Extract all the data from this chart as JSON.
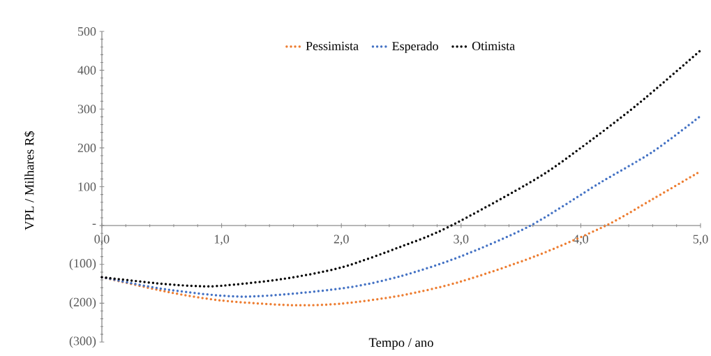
{
  "chart_data": {
    "type": "line",
    "xlabel": "Tempo / ano",
    "ylabel": "VPL / Milhares R$",
    "xlim": [
      0,
      5
    ],
    "ylim": [
      -300,
      500
    ],
    "xticks": [
      {
        "value": 0,
        "label": "0,0"
      },
      {
        "value": 1,
        "label": "1,0"
      },
      {
        "value": 2,
        "label": "2,0"
      },
      {
        "value": 3,
        "label": "3,0"
      },
      {
        "value": 4,
        "label": "4,0"
      },
      {
        "value": 5,
        "label": "5,0"
      }
    ],
    "yticks": [
      {
        "value": -300,
        "label": "(300)"
      },
      {
        "value": -200,
        "label": "(200)"
      },
      {
        "value": -100,
        "label": "(100)"
      },
      {
        "value": 0,
        "label": "-"
      },
      100,
      200,
      300,
      400,
      500
    ],
    "legend": "top",
    "marker": "none",
    "line_style": "dotted",
    "series": [
      {
        "name": "Pessimista",
        "color": "#ed7d31",
        "x": [
          0,
          0.55,
          1.0,
          1.58,
          2.0,
          2.5,
          3.0,
          3.62,
          4.21,
          4.6,
          5.0
        ],
        "values": [
          -133,
          -171,
          -193,
          -205,
          -201,
          -180,
          -144,
          -79,
          0,
          68,
          140
        ]
      },
      {
        "name": "Esperado",
        "color": "#4472c4",
        "x": [
          0,
          0.55,
          1.2,
          2.0,
          2.5,
          3.0,
          3.58,
          4.16,
          4.6,
          5.0
        ],
        "values": [
          -133,
          -165,
          -183,
          -162,
          -130,
          -79,
          0,
          110,
          190,
          282
        ]
      },
      {
        "name": "Otimista",
        "color": "#000000",
        "x": [
          0,
          0.5,
          0.8,
          1.0,
          1.5,
          2.0,
          2.5,
          2.9,
          3.62,
          4.0,
          4.47,
          5.0
        ],
        "values": [
          -133,
          -150,
          -156,
          -155,
          -138,
          -108,
          -54,
          -3,
          119,
          200,
          311,
          451
        ]
      }
    ]
  }
}
